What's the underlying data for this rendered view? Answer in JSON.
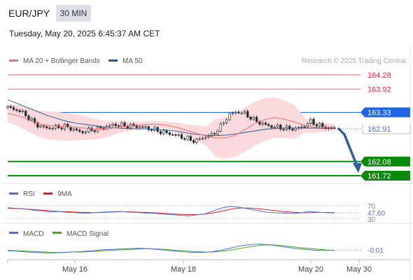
{
  "header": {
    "symbol": "EUR/JPY",
    "timeframe": "30 MIN",
    "datetime": "Tuesday, May 20, 2025 6:45:37 AM CET"
  },
  "legend": {
    "ma20_label": "MA 20 + Bollinger Bands",
    "ma50_label": "MA 50",
    "copyright": "Research © 2025 Trading Central"
  },
  "colors": {
    "ma20": "#ee6e73",
    "ma50": "#2b5797",
    "bollinger_fill": "#fbdadd",
    "current": "#1f66e5",
    "support": "#0a8a0a",
    "resistance": "#ee6e73",
    "arrow": "#2e5e9e",
    "rsi": "#4f6fd6",
    "rsi_ma": "#e02020",
    "macd": "#4f6fd6",
    "macd_signal": "#44aa22"
  },
  "price_levels": {
    "resistance": [
      "164.28",
      "163.92"
    ],
    "current": "163.33",
    "last": "162.91",
    "support": [
      "162.08",
      "161.72"
    ]
  },
  "rsi": {
    "label": "RSI",
    "ma_label": "9MA",
    "levels": [
      "70",
      "47.60",
      "30"
    ]
  },
  "macd": {
    "label": "MACD",
    "signal_label": "MACD Signal",
    "value": "-0.01"
  },
  "x_axis": {
    "labels": [
      "May 16",
      "May 18",
      "May 20",
      "May 30"
    ]
  },
  "chart_data": [
    {
      "type": "line",
      "title": "",
      "price_axis_labels": [
        "164.28",
        "163.92",
        "163.33",
        "162.91",
        "162.08",
        "161.72"
      ],
      "series": [
        {
          "name": "MA 20",
          "values": [
            163.3,
            163.25,
            163.15,
            163.05,
            163.0,
            162.98,
            162.96,
            162.95,
            162.92,
            162.9,
            162.9,
            162.95,
            162.98,
            163.0,
            163.02,
            163.03,
            163.0,
            162.95,
            162.88,
            162.8,
            162.73,
            162.68,
            162.68,
            162.75,
            162.9,
            163.05,
            163.15,
            163.2,
            163.15,
            163.08,
            163.0,
            162.95,
            162.95,
            162.95
          ]
        },
        {
          "name": "MA 50",
          "values": [
            163.65,
            163.55,
            163.45,
            163.35,
            163.25,
            163.17,
            163.1,
            163.05,
            163.02,
            162.98,
            162.95,
            162.93,
            162.92,
            162.91,
            162.91,
            162.9,
            162.88,
            162.85,
            162.81,
            162.77,
            162.75,
            162.74,
            162.75,
            162.78,
            162.82,
            162.86,
            162.9,
            162.92,
            162.93,
            162.93,
            162.93,
            162.93,
            162.92,
            162.92
          ]
        }
      ],
      "price_series": [
        163.45,
        163.4,
        163.3,
        163.1,
        162.96,
        162.93,
        162.95,
        162.97,
        162.9,
        162.82,
        162.88,
        162.9,
        162.96,
        163.02,
        163.0,
        162.98,
        162.97,
        162.93,
        162.88,
        162.82,
        162.78,
        162.72,
        162.65,
        162.6,
        162.7,
        162.75,
        162.95,
        163.25,
        163.35,
        163.3,
        163.15,
        163.05,
        162.98,
        162.95,
        162.92,
        162.91,
        162.95,
        163.1,
        163.0,
        162.94,
        162.91
      ],
      "projection": {
        "from": 162.91,
        "to": 161.72
      }
    },
    {
      "type": "line",
      "title": "",
      "ylim": [
        30,
        70
      ],
      "series": [
        {
          "name": "RSI",
          "values": [
            64,
            62,
            60,
            56,
            54,
            50,
            52,
            49,
            48,
            46,
            48,
            50,
            51,
            52,
            50,
            49,
            47,
            46,
            44,
            42,
            40,
            38,
            41,
            45,
            55,
            64,
            68,
            65,
            60,
            55,
            50,
            48,
            47,
            46,
            47,
            52,
            50,
            48,
            47.6
          ]
        },
        {
          "name": "9MA",
          "values": [
            62,
            61,
            60,
            58,
            56,
            54,
            52,
            51,
            50,
            49,
            48,
            49,
            50,
            51,
            51,
            50,
            49,
            48,
            46,
            45,
            43,
            42,
            42,
            44,
            48,
            54,
            60,
            63,
            63,
            61,
            58,
            55,
            52,
            50,
            48,
            48,
            49,
            49,
            48.5
          ]
        }
      ]
    },
    {
      "type": "line",
      "title": "",
      "series": [
        {
          "name": "MACD",
          "values": [
            -0.02,
            -0.03,
            -0.05,
            -0.06,
            -0.07,
            -0.07,
            -0.06,
            -0.05,
            -0.04,
            -0.02,
            0.0,
            0.01,
            0.02,
            0.03,
            0.04,
            0.03,
            0.01,
            -0.01,
            -0.03,
            -0.05,
            -0.06,
            -0.06,
            -0.04,
            0.0,
            0.05,
            0.1,
            0.13,
            0.14,
            0.12,
            0.09,
            0.06,
            0.03,
            0.01,
            -0.01,
            -0.01,
            -0.01
          ]
        },
        {
          "name": "MACD Signal",
          "values": [
            -0.01,
            -0.02,
            -0.03,
            -0.04,
            -0.05,
            -0.06,
            -0.06,
            -0.05,
            -0.05,
            -0.04,
            -0.02,
            -0.01,
            0.0,
            0.01,
            0.02,
            0.03,
            0.02,
            0.01,
            -0.01,
            -0.02,
            -0.04,
            -0.05,
            -0.05,
            -0.03,
            0.0,
            0.04,
            0.08,
            0.11,
            0.12,
            0.11,
            0.09,
            0.06,
            0.04,
            0.02,
            0.0,
            -0.01
          ]
        }
      ]
    }
  ]
}
